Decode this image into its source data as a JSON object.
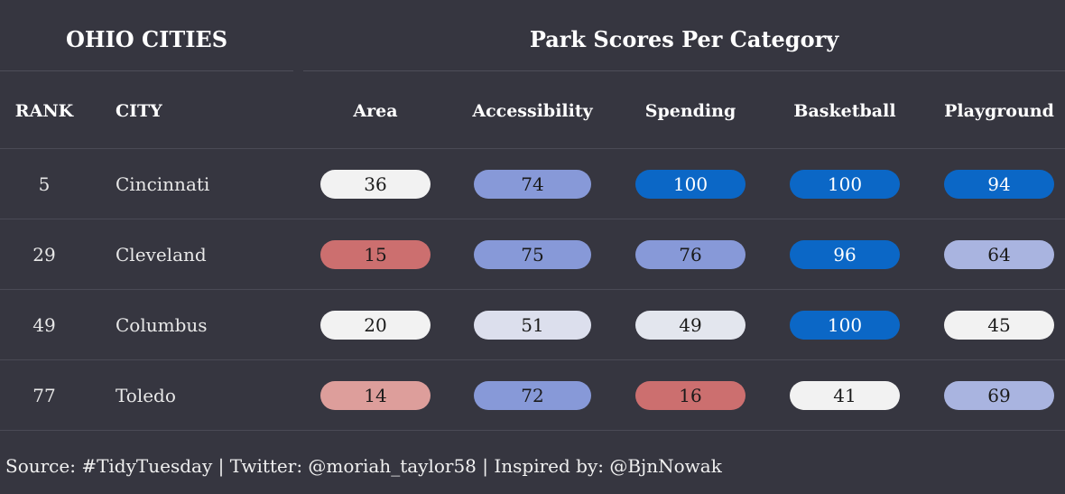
{
  "left_title": "OHIO CITIES",
  "right_title": "Park Scores Per Category",
  "columns": {
    "rank": "RANK",
    "city": "CITY",
    "categories": [
      "Area",
      "Accessibility",
      "Spending",
      "Basketball",
      "Playground"
    ]
  },
  "chart_data": {
    "type": "table",
    "title": "Park Scores Per Category",
    "categories": [
      "Area",
      "Accessibility",
      "Spending",
      "Basketball",
      "Playground"
    ],
    "rows": [
      {
        "rank": "5",
        "city": "Cincinnati",
        "scores": [
          36,
          74,
          100,
          100,
          94
        ]
      },
      {
        "rank": "29",
        "city": "Cleveland",
        "scores": [
          15,
          75,
          76,
          96,
          64
        ]
      },
      {
        "rank": "49",
        "city": "Columbus",
        "scores": [
          20,
          51,
          49,
          100,
          45
        ]
      },
      {
        "rank": "77",
        "city": "Toledo",
        "scores": [
          14,
          72,
          16,
          41,
          69
        ]
      }
    ],
    "color_scale": {
      "low": "#cc6f6f",
      "mid_low": "#dd9e9b",
      "neutral": "#f2f2f2",
      "mid_high": "#a9b4e0",
      "high_light": "#8799d8",
      "high": "#0b67c6"
    }
  },
  "source": "Source: #TidyTuesday | Twitter: @moriah_taylor58 | Inspired by: @BjnNowak"
}
